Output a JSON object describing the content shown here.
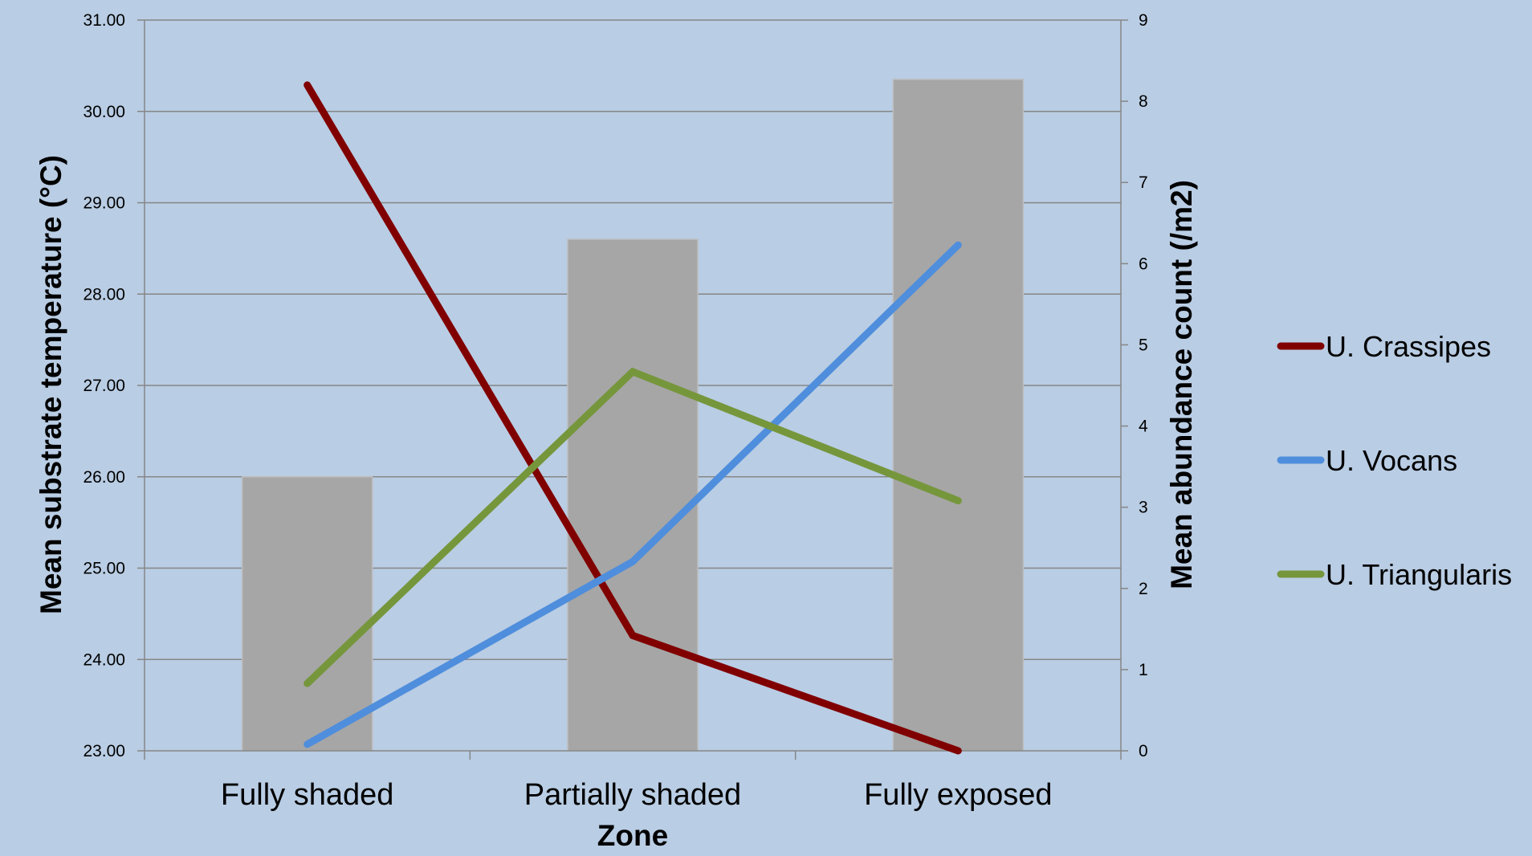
{
  "chart_data": {
    "type": "bar",
    "categories": [
      "Fully shaded",
      "Partially shaded",
      "Fully exposed"
    ],
    "bar_series": {
      "axis": "left",
      "values": [
        26.0,
        28.6,
        30.35
      ],
      "color": "#a6a6a6"
    },
    "line_series": [
      {
        "name": "U. Crassipes",
        "axis": "right",
        "values": [
          8.2,
          1.42,
          0.0
        ],
        "color": "#800000"
      },
      {
        "name": "U. Vocans",
        "axis": "right",
        "values": [
          0.08,
          2.33,
          6.23
        ],
        "color": "#4f8edc"
      },
      {
        "name": "U. Triangularis",
        "axis": "right",
        "values": [
          0.83,
          4.67,
          3.08
        ],
        "color": "#76963c"
      }
    ],
    "xlabel": "Zone",
    "ylabel": "Mean substrate temperature (°C)",
    "y2label": "Mean abundance count (/m2)",
    "ylim": [
      23.0,
      31.0
    ],
    "y2lim": [
      0,
      9
    ],
    "y_ticks": [
      "23.00",
      "24.00",
      "25.00",
      "26.00",
      "27.00",
      "28.00",
      "29.00",
      "30.00",
      "31.00"
    ],
    "y2_ticks": [
      "0",
      "1",
      "2",
      "3",
      "4",
      "5",
      "6",
      "7",
      "8",
      "9"
    ],
    "grid": true,
    "legend_position": "right"
  },
  "colors": {
    "background": "#b9cde4",
    "gridline": "#868686",
    "axis": "#868686"
  }
}
